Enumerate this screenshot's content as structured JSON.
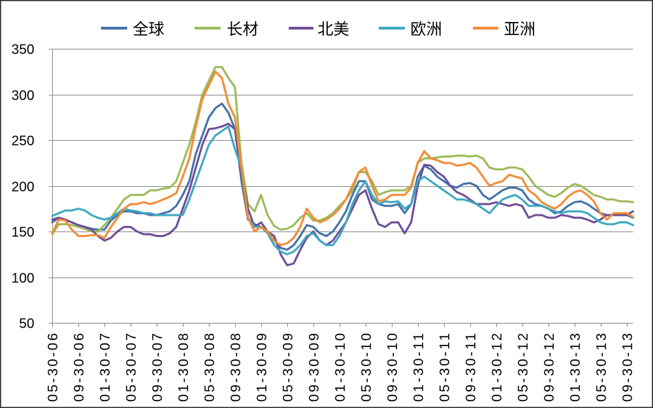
{
  "chart_data": {
    "type": "line",
    "legend": "top",
    "grid": "horizontal",
    "xlim": [
      "2006-05",
      "2013-10"
    ],
    "ylim": [
      50,
      350
    ],
    "y_ticks": [
      50,
      100,
      150,
      200,
      250,
      300,
      350
    ],
    "x_ticks": [
      "05-30-06",
      "09-30-06",
      "01-30-07",
      "05-30-07",
      "09-30-07",
      "01-30-08",
      "05-30-08",
      "09-30-08",
      "01-30-09",
      "05-30-09",
      "09-30-09",
      "01-30-10",
      "05-30-10",
      "09-30-10",
      "01-30-11",
      "05-30-11",
      "09-30-11",
      "01-30-12",
      "05-30-12",
      "09-30-12",
      "01-30-13",
      "05-30-13",
      "09-30-13"
    ],
    "x": [
      "2006-05",
      "2006-06",
      "2006-07",
      "2006-08",
      "2006-09",
      "2006-10",
      "2006-11",
      "2006-12",
      "2007-01",
      "2007-02",
      "2007-03",
      "2007-04",
      "2007-05",
      "2007-06",
      "2007-07",
      "2007-08",
      "2007-09",
      "2007-10",
      "2007-11",
      "2007-12",
      "2008-01",
      "2008-02",
      "2008-03",
      "2008-04",
      "2008-05",
      "2008-06",
      "2008-07",
      "2008-08",
      "2008-09",
      "2008-10",
      "2008-11",
      "2008-12",
      "2009-01",
      "2009-02",
      "2009-03",
      "2009-04",
      "2009-05",
      "2009-06",
      "2009-07",
      "2009-08",
      "2009-09",
      "2009-10",
      "2009-11",
      "2009-12",
      "2010-01",
      "2010-02",
      "2010-03",
      "2010-04",
      "2010-05",
      "2010-06",
      "2010-07",
      "2010-08",
      "2010-09",
      "2010-10",
      "2010-11",
      "2010-12",
      "2011-01",
      "2011-02",
      "2011-03",
      "2011-04",
      "2011-05",
      "2011-06",
      "2011-07",
      "2011-08",
      "2011-09",
      "2011-10",
      "2011-11",
      "2011-12",
      "2012-01",
      "2012-02",
      "2012-03",
      "2012-04",
      "2012-05",
      "2012-06",
      "2012-07",
      "2012-08",
      "2012-09",
      "2012-10",
      "2012-11",
      "2012-12",
      "2013-01",
      "2013-02",
      "2013-03",
      "2013-04",
      "2013-05",
      "2013-06",
      "2013-07",
      "2013-08",
      "2013-09",
      "2013-10"
    ],
    "series": [
      {
        "name": "全球",
        "color": "#4472a8",
        "values": [
          160,
          165,
          163,
          160,
          157,
          155,
          153,
          152,
          152,
          162,
          168,
          172,
          172,
          170,
          170,
          168,
          168,
          170,
          172,
          178,
          190,
          205,
          235,
          255,
          275,
          285,
          290,
          280,
          262,
          205,
          163,
          158,
          155,
          150,
          140,
          132,
          130,
          135,
          145,
          157,
          155,
          148,
          145,
          150,
          160,
          172,
          190,
          205,
          205,
          185,
          180,
          178,
          178,
          180,
          170,
          180,
          210,
          222,
          218,
          210,
          205,
          200,
          198,
          202,
          203,
          200,
          190,
          185,
          190,
          195,
          198,
          198,
          195,
          185,
          180,
          178,
          175,
          170,
          172,
          178,
          182,
          183,
          180,
          175,
          170,
          168,
          168,
          168,
          168,
          165
        ]
      },
      {
        "name": "长材",
        "color": "#9bbb59",
        "values": [
          147,
          158,
          158,
          157,
          155,
          153,
          150,
          150,
          157,
          165,
          175,
          185,
          190,
          190,
          190,
          195,
          195,
          197,
          198,
          205,
          225,
          245,
          270,
          300,
          315,
          330,
          330,
          318,
          308,
          225,
          180,
          172,
          190,
          168,
          156,
          152,
          153,
          157,
          165,
          170,
          162,
          162,
          165,
          170,
          178,
          185,
          195,
          215,
          215,
          205,
          190,
          193,
          195,
          195,
          195,
          200,
          225,
          230,
          230,
          231,
          232,
          232,
          233,
          233,
          232,
          233,
          230,
          220,
          218,
          218,
          220,
          220,
          218,
          210,
          200,
          195,
          190,
          188,
          192,
          198,
          202,
          200,
          195,
          190,
          188,
          185,
          185,
          183,
          183,
          182
        ]
      },
      {
        "name": "北美",
        "color": "#6f4e98",
        "values": [
          163,
          165,
          163,
          160,
          157,
          155,
          152,
          145,
          140,
          143,
          150,
          155,
          155,
          150,
          147,
          147,
          145,
          145,
          148,
          155,
          175,
          195,
          220,
          245,
          262,
          263,
          265,
          268,
          262,
          215,
          175,
          155,
          160,
          150,
          145,
          125,
          113,
          115,
          130,
          143,
          150,
          140,
          135,
          140,
          150,
          160,
          175,
          190,
          195,
          175,
          158,
          155,
          160,
          160,
          148,
          160,
          200,
          223,
          222,
          215,
          210,
          200,
          193,
          190,
          185,
          180,
          180,
          180,
          182,
          180,
          178,
          180,
          178,
          165,
          168,
          168,
          165,
          165,
          168,
          167,
          165,
          165,
          163,
          160,
          163,
          168,
          168,
          168,
          168,
          172
        ]
      },
      {
        "name": "欧洲",
        "color": "#3fa7bf",
        "values": [
          167,
          170,
          173,
          173,
          175,
          173,
          168,
          165,
          163,
          165,
          170,
          175,
          173,
          172,
          170,
          170,
          168,
          168,
          168,
          168,
          168,
          185,
          205,
          225,
          245,
          255,
          260,
          265,
          240,
          220,
          165,
          155,
          155,
          148,
          135,
          128,
          125,
          128,
          135,
          145,
          148,
          140,
          135,
          135,
          145,
          160,
          180,
          195,
          205,
          190,
          180,
          183,
          182,
          183,
          175,
          180,
          205,
          210,
          205,
          200,
          195,
          190,
          185,
          185,
          183,
          180,
          175,
          170,
          178,
          185,
          188,
          190,
          185,
          178,
          178,
          178,
          175,
          172,
          170,
          172,
          172,
          172,
          170,
          165,
          160,
          158,
          158,
          160,
          160,
          157
        ]
      },
      {
        "name": "亚洲",
        "color": "#f28c36",
        "values": [
          148,
          163,
          162,
          152,
          145,
          145,
          146,
          146,
          143,
          155,
          165,
          175,
          180,
          180,
          182,
          180,
          182,
          185,
          188,
          192,
          210,
          230,
          265,
          295,
          310,
          325,
          318,
          290,
          275,
          220,
          165,
          150,
          155,
          150,
          140,
          135,
          137,
          143,
          155,
          175,
          165,
          160,
          163,
          168,
          175,
          185,
          200,
          215,
          220,
          200,
          183,
          185,
          190,
          190,
          190,
          198,
          225,
          238,
          230,
          228,
          225,
          225,
          222,
          223,
          225,
          220,
          210,
          200,
          203,
          205,
          212,
          210,
          208,
          195,
          190,
          182,
          178,
          175,
          180,
          188,
          193,
          195,
          190,
          183,
          170,
          163,
          170,
          170,
          170,
          166
        ]
      }
    ]
  }
}
